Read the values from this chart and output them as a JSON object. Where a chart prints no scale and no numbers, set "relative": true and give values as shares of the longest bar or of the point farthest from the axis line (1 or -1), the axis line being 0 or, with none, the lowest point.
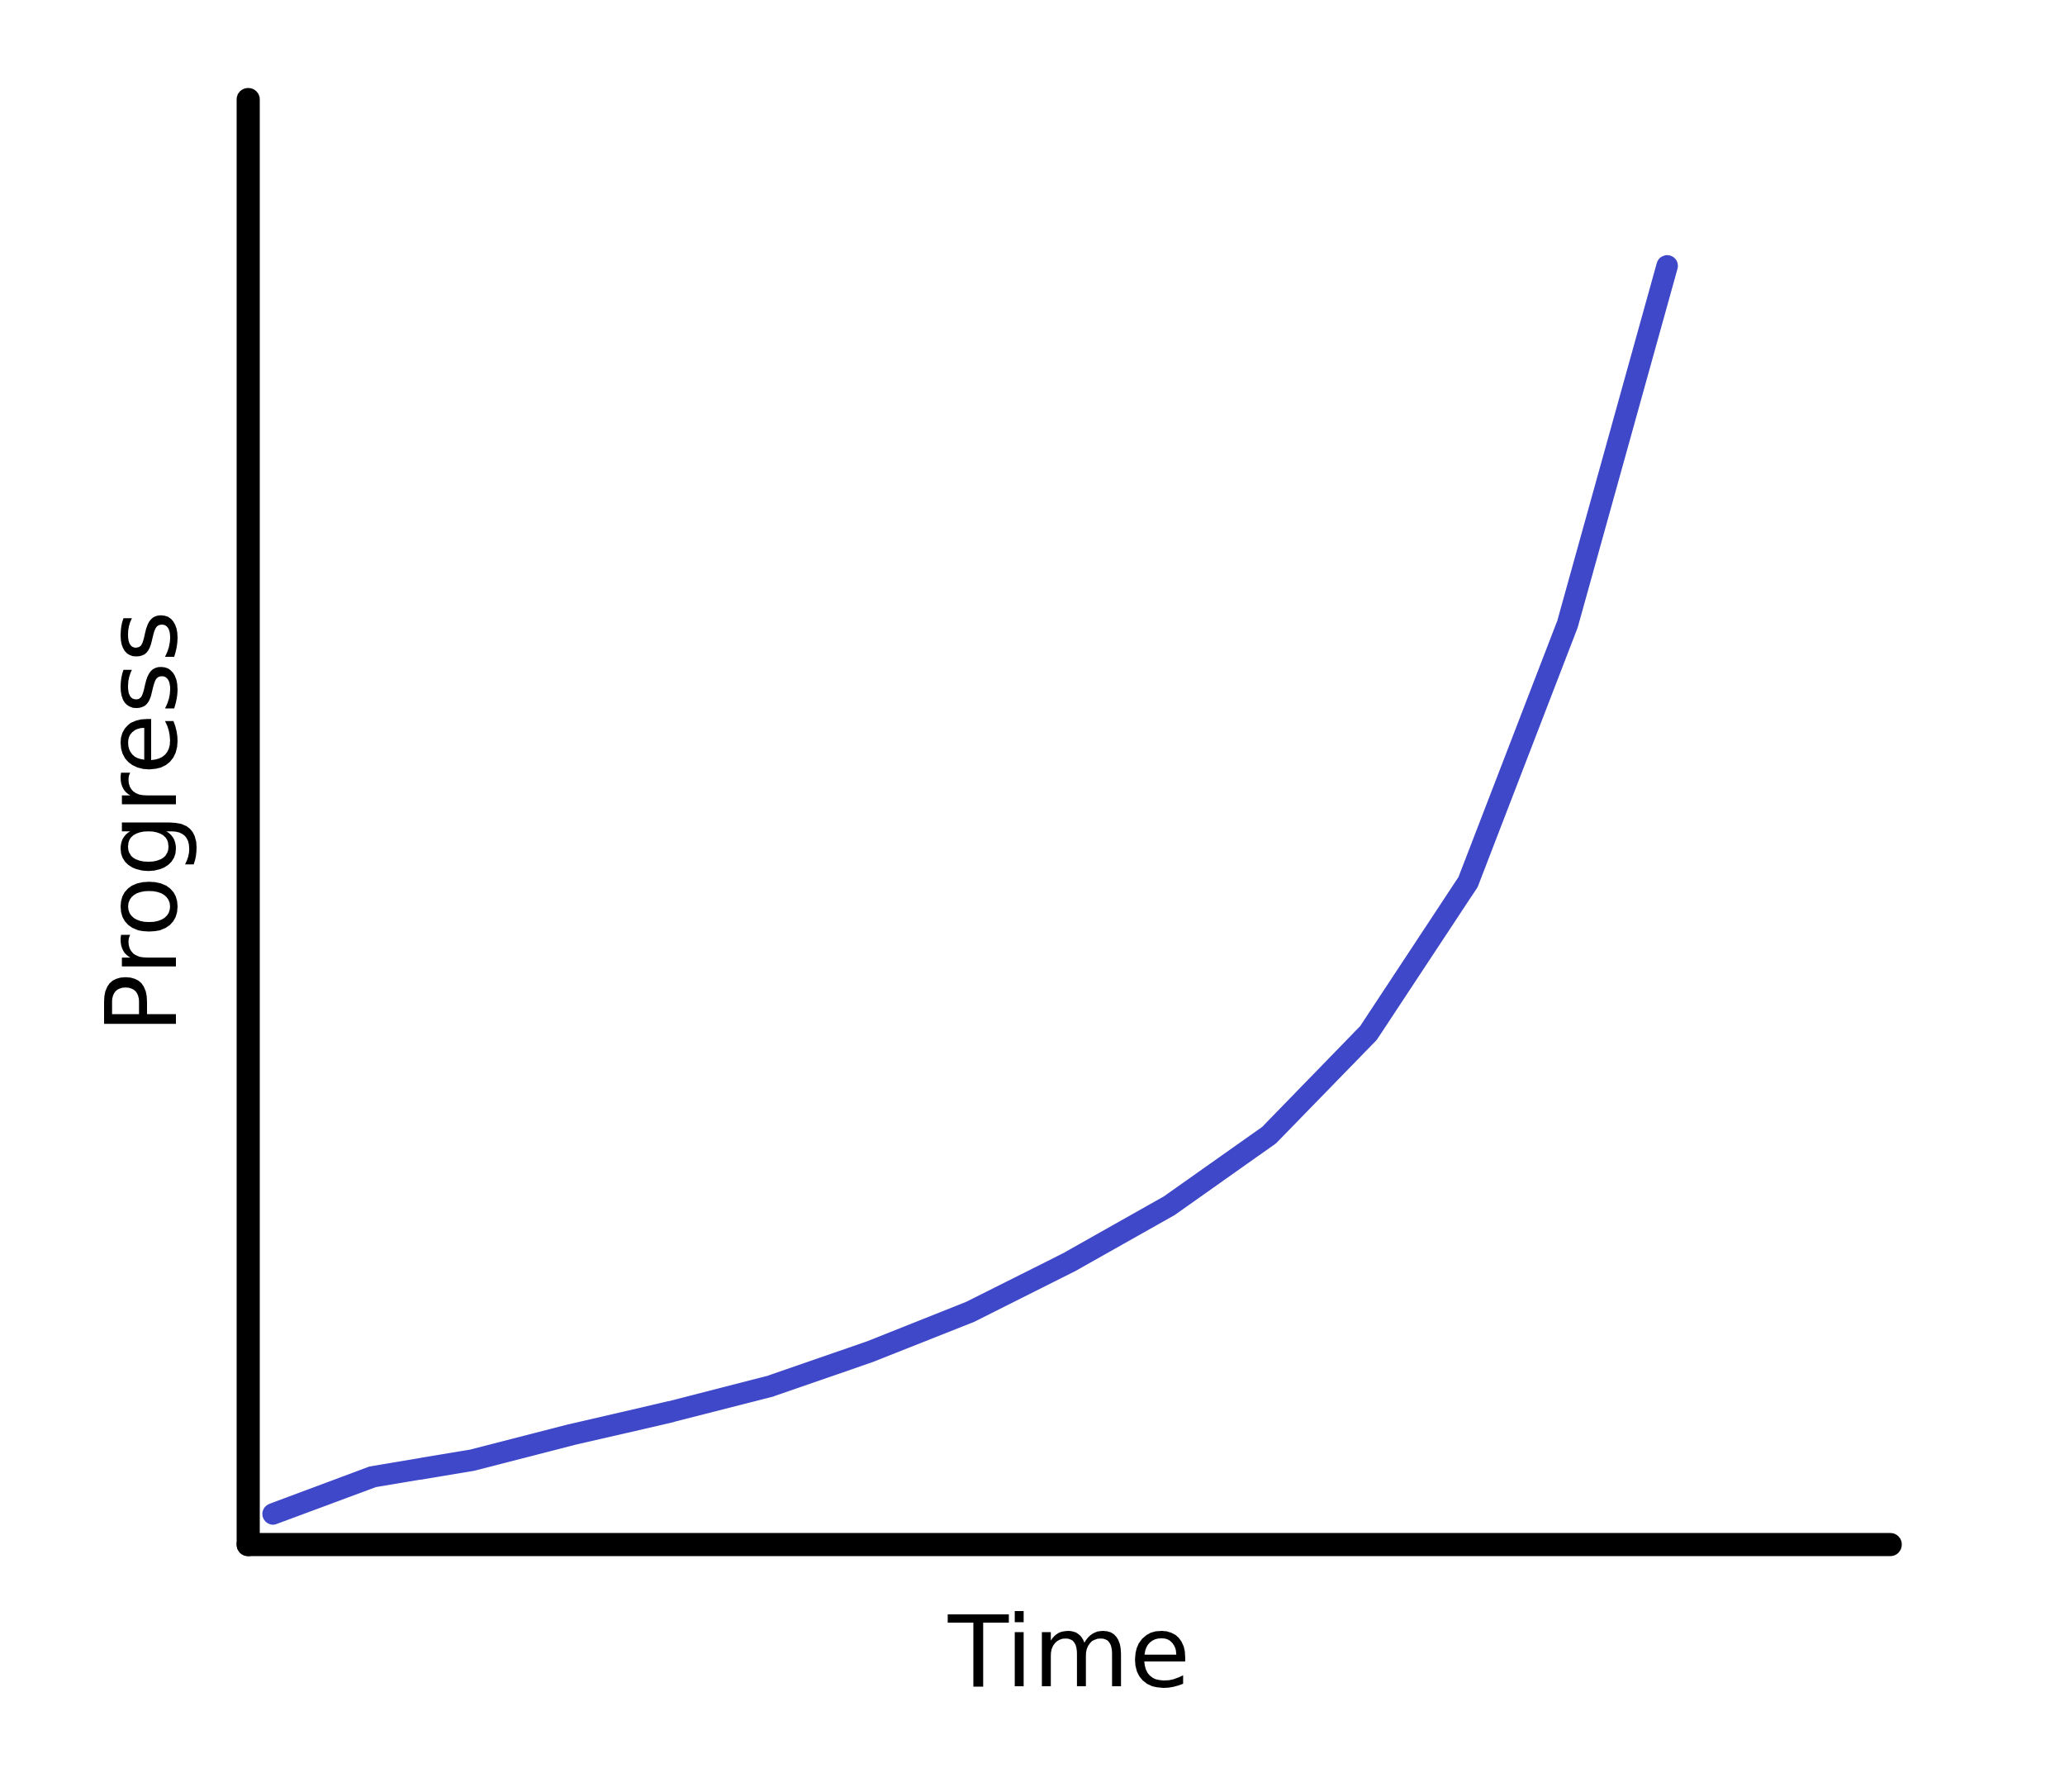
{
  "chart_data": {
    "type": "line",
    "xlabel": "Time",
    "ylabel": "Progress",
    "relative": true,
    "categories": [
      null,
      null,
      null,
      null,
      null,
      null,
      null,
      null,
      null,
      null,
      null,
      null,
      null,
      null,
      null
    ],
    "series": [
      {
        "color": "#3f48c8",
        "values": [
          0.024,
          0.053,
          0.066,
          0.086,
          0.104,
          0.124,
          0.151,
          0.182,
          0.221,
          0.265,
          0.32,
          0.4,
          0.518,
          0.72,
          1
        ]
      }
    ]
  }
}
